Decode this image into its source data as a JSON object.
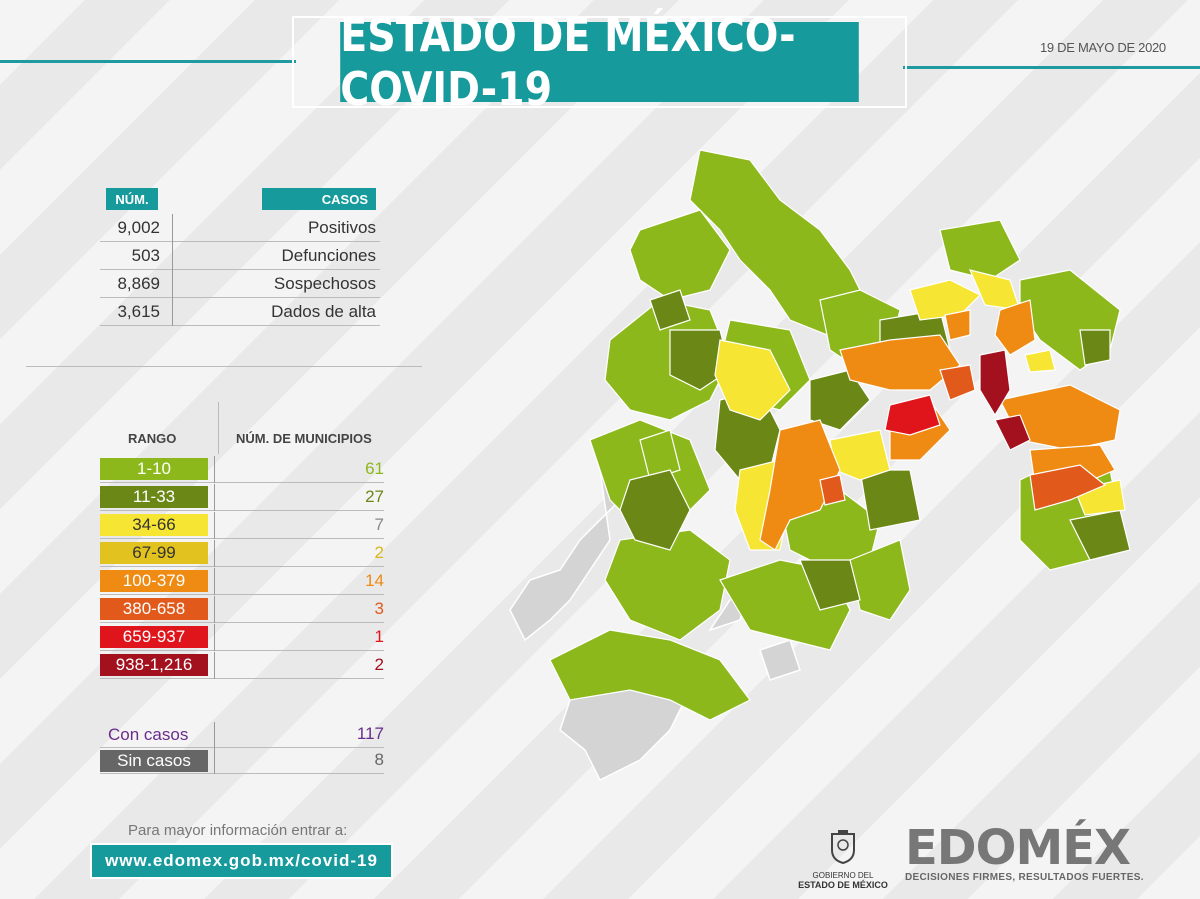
{
  "title": "ESTADO DE MÉXICO-COVID-19",
  "date": "19 DE MAYO DE 2020",
  "cases_table": {
    "header_num": "NÚM.",
    "header_cases": "CASOS",
    "rows": [
      {
        "num": "9,002",
        "label": "Positivos"
      },
      {
        "num": "503",
        "label": "Defunciones"
      },
      {
        "num": "8,869",
        "label": "Sospechosos"
      },
      {
        "num": "3,615",
        "label": "Dados de alta"
      }
    ]
  },
  "range_table": {
    "header_range": "RANGO",
    "header_municipios": "NÚM. DE MUNICIPIOS",
    "rows": [
      {
        "range": "1-10",
        "count": "61",
        "color": "#8cb81c",
        "text_color": "#ffffff",
        "count_color": "#8cb81c"
      },
      {
        "range": "11-33",
        "count": "27",
        "color": "#6b8716",
        "text_color": "#ffffff",
        "count_color": "#6b8716"
      },
      {
        "range": "34-66",
        "count": "7",
        "color": "#f6e533",
        "text_color": "#333333",
        "count_color": "#888888"
      },
      {
        "range": "67-99",
        "count": "2",
        "color": "#e2c21e",
        "text_color": "#333333",
        "count_color": "#d8b81a"
      },
      {
        "range": "100-379",
        "count": "14",
        "color": "#ef8a12",
        "text_color": "#ffffff",
        "count_color": "#ef8a12"
      },
      {
        "range": "380-658",
        "count": "3",
        "color": "#e15a1c",
        "text_color": "#ffffff",
        "count_color": "#e15a1c"
      },
      {
        "range": "659-937",
        "count": "1",
        "color": "#e0141b",
        "text_color": "#ffffff",
        "count_color": "#e0141b"
      },
      {
        "range": "938-1,216",
        "count": "2",
        "color": "#a3111e",
        "text_color": "#ffffff",
        "count_color": "#a3111e"
      }
    ],
    "con_casos": {
      "label": "Con casos",
      "count": "117",
      "color": "#6a2c8c"
    },
    "sin_casos": {
      "label": "Sin casos",
      "count": "8",
      "color": "#666666"
    }
  },
  "info_text": "Para mayor información entrar a:",
  "url": "www.edomex.gob.mx/covid-19",
  "gov_logo": {
    "line1": "GOBIERNO DEL",
    "line2": "ESTADO DE MÉXICO"
  },
  "brand": {
    "word": "EDOMÉX",
    "slogan": "DECISIONES FIRMES, RESULTADOS FUERTES."
  },
  "map_icon": "state-of-mexico-municipalities-map"
}
